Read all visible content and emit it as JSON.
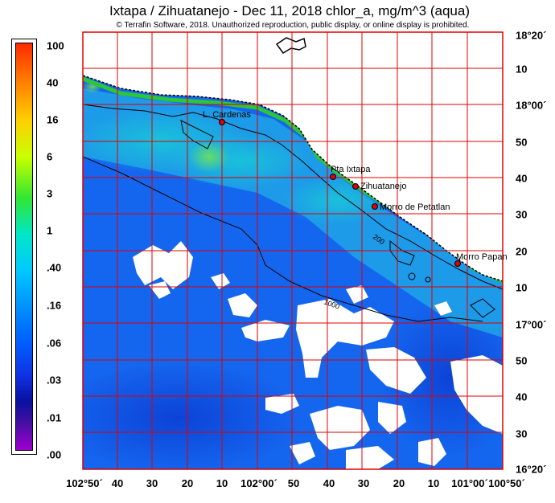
{
  "header": {
    "title": "Ixtapa / Zihuatanejo - Dec 11, 2018  chlor_a, mg/m^3 (aqua)",
    "subtitle": "© Terrafin Software,  2018.  Unauthorized reproduction, public display, or online display is prohibited."
  },
  "colorbar": {
    "labels": [
      "100",
      "40",
      "16",
      "6",
      "3",
      "1",
      ".40",
      ".16",
      ".06",
      ".03",
      ".01",
      ".00"
    ]
  },
  "axes": {
    "x_ticks": [
      "102°50´",
      "40",
      "30",
      "20",
      "10",
      "102°00´",
      "50",
      "40",
      "30",
      "20",
      "10",
      "101°00´",
      "100°50´"
    ],
    "y_ticks": [
      "18°20´",
      "10",
      "18°00´",
      "50",
      "40",
      "30",
      "20",
      "10",
      "17°00´",
      "50",
      "40",
      "30",
      "16°20´"
    ]
  },
  "places": [
    {
      "name": "L. Cardenas"
    },
    {
      "name": "Pta Ixtapa"
    },
    {
      "name": "Zihuatanejo"
    },
    {
      "name": "Morro de Petatlan"
    },
    {
      "name": "Morro Papan"
    }
  ],
  "contours": {
    "label_200": "200",
    "label_1000": "1000"
  },
  "colors": {
    "land": "#ffffff",
    "grid": "#e00000",
    "coast_high": "#22c83c",
    "ocean_main": "#1466f0",
    "cloud": "#ffffff"
  }
}
